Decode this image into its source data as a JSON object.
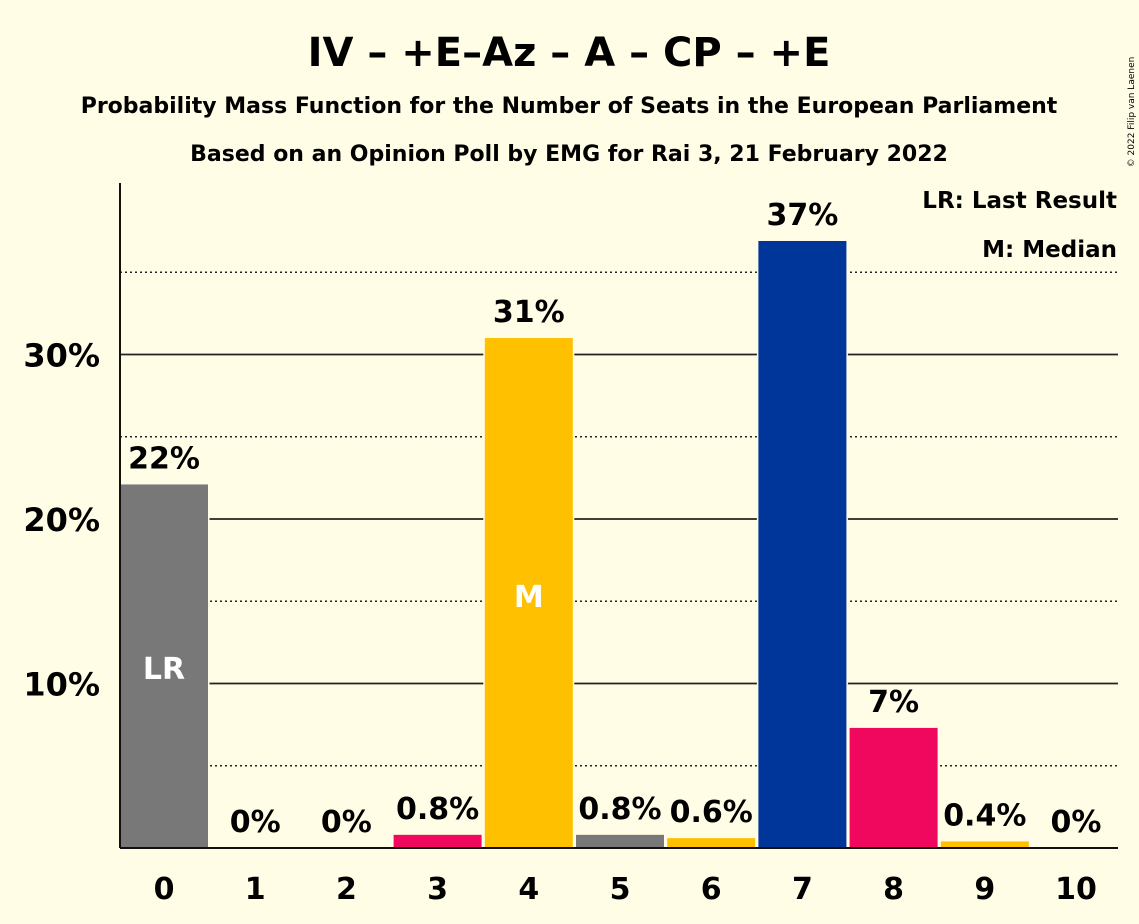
{
  "chart_data": {
    "type": "bar",
    "title": "IV – +E–Az – A – CP – +E",
    "subtitle": "Probability Mass Function for the Number of Seats in the European Parliament",
    "subtitle2": "Based on an Opinion Poll by EMG for Rai 3, 21 February 2022",
    "copyright": "© 2022 Filip van Laenen",
    "legend": [
      "LR: Last Result",
      "M: Median"
    ],
    "legend_position": "top-right",
    "categories": [
      "0",
      "1",
      "2",
      "3",
      "4",
      "5",
      "6",
      "7",
      "8",
      "9",
      "10"
    ],
    "values": [
      22.1,
      0,
      0,
      0.8,
      31,
      0.8,
      0.6,
      36.9,
      7.3,
      0.4,
      0
    ],
    "data_labels": [
      "22%",
      "0%",
      "0%",
      "0.8%",
      "31%",
      "0.8%",
      "0.6%",
      "37%",
      "7%",
      "0.4%",
      "0%"
    ],
    "bar_colors": [
      "#787878",
      "#787878",
      "#787878",
      "#F0085E",
      "#FFC000",
      "#787878",
      "#FFC000",
      "#00359A",
      "#F0085E",
      "#FFC000",
      "#787878"
    ],
    "inside_labels": {
      "0": "LR",
      "4": "M"
    },
    "y_ticks": [
      10,
      20,
      30
    ],
    "y_tick_labels": [
      "10%",
      "20%",
      "30%"
    ],
    "ylim": [
      0,
      40
    ],
    "grid": true
  }
}
